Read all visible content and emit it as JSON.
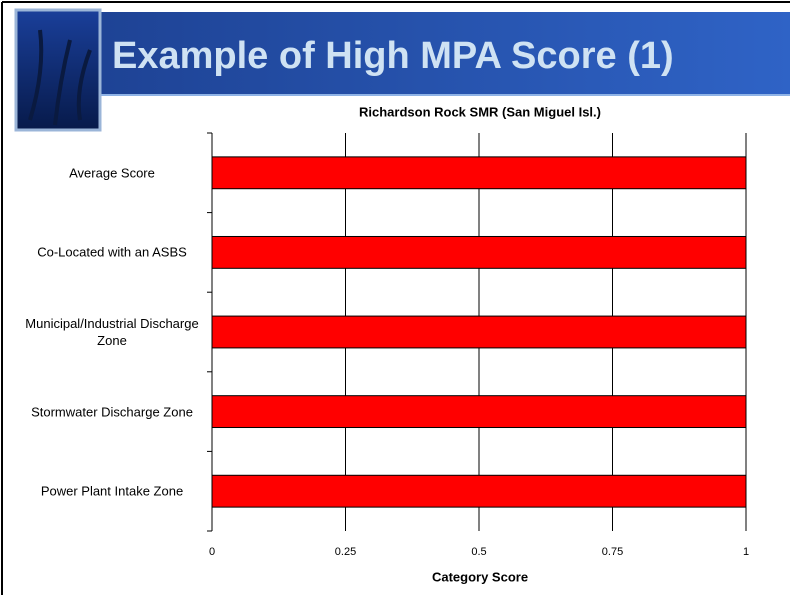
{
  "slide": {
    "title": "Example of High MPA Score (1)"
  },
  "chart_data": {
    "type": "bar",
    "orientation": "horizontal",
    "title": "Richardson Rock SMR (San Miguel Isl.)",
    "x_label": "Category Score",
    "categories": [
      "Average Score",
      "Co-Located with an ASBS",
      "Municipal/Industrial Discharge Zone",
      "Stormwater Discharge Zone",
      "Power Plant Intake Zone"
    ],
    "values": [
      1,
      1,
      1,
      1,
      1
    ],
    "color": "#ff0000",
    "xlim": [
      0,
      1
    ],
    "xticks": [
      0,
      0.25,
      0.5,
      0.75,
      1
    ],
    "grid": true
  }
}
